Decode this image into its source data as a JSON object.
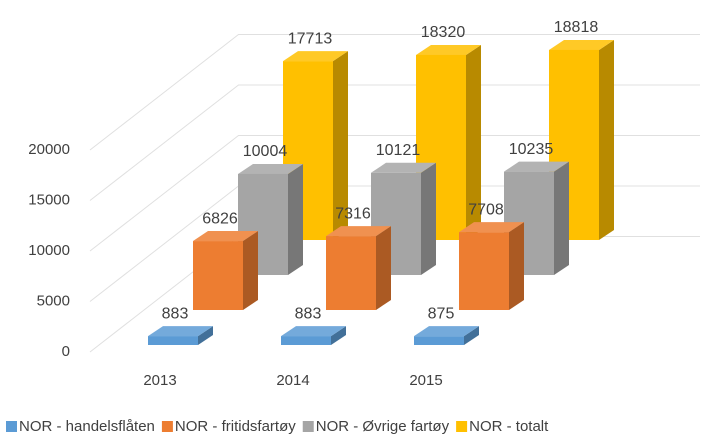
{
  "chart_data": {
    "type": "bar3d",
    "categories": [
      "2013",
      "2014",
      "2015"
    ],
    "series": [
      {
        "name": "NOR - handelsflåten",
        "color": "#5b9bd5",
        "values": [
          883,
          883,
          875
        ]
      },
      {
        "name": "NOR - fritidsfartøy",
        "color": "#ed7d31",
        "values": [
          6826,
          7316,
          7708
        ]
      },
      {
        "name": "NOR - Øvrige fartøy",
        "color": "#a5a5a5",
        "values": [
          10004,
          10121,
          10235
        ]
      },
      {
        "name": "NOR - totalt",
        "color": "#ffc000",
        "values": [
          17713,
          18320,
          18818
        ]
      }
    ],
    "ylim": [
      0,
      20000
    ],
    "yticks": [
      0,
      5000,
      10000,
      15000,
      20000
    ],
    "grid": true,
    "legend": "bottom"
  }
}
